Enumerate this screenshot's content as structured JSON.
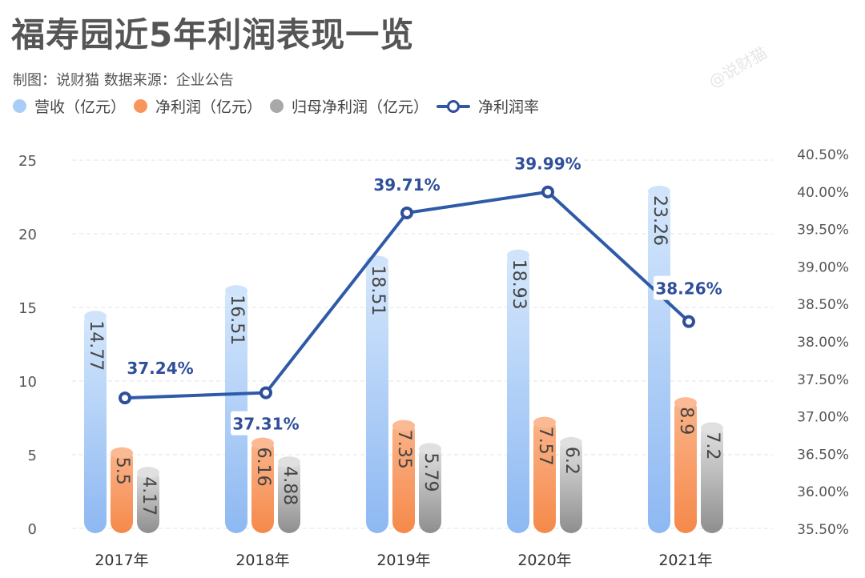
{
  "title": "福寿园近5年利润表现一览",
  "subtitle": "制图：说财猫  数据来源：企业公告",
  "watermark": "@说财猫",
  "colors": {
    "revenue": "#9cc4f5",
    "net_profit": "#f8955a",
    "parent_profit": "#a8a8a8",
    "margin": "#2f5aa8"
  },
  "chart_data": {
    "type": "bar+line",
    "categories": [
      "2017年",
      "2018年",
      "2019年",
      "2020年",
      "2021年"
    ],
    "series": [
      {
        "name": "营收（亿元）",
        "type": "bar",
        "axis": "left",
        "values": [
          14.77,
          16.51,
          18.51,
          18.93,
          23.26
        ],
        "labels": [
          "14.77",
          "16.51",
          "18.51",
          "18.93",
          "23.26"
        ]
      },
      {
        "name": "净利润（亿元）",
        "type": "bar",
        "axis": "left",
        "values": [
          5.5,
          6.16,
          7.35,
          7.57,
          8.9
        ],
        "labels": [
          "5.5",
          "6.16",
          "7.35",
          "7.57",
          "8.9"
        ]
      },
      {
        "name": "归母净利润（亿元）",
        "type": "bar",
        "axis": "left",
        "values": [
          4.17,
          4.88,
          5.79,
          6.2,
          7.2
        ],
        "labels": [
          "4.17",
          "4.88",
          "5.79",
          "6.2",
          "7.2"
        ]
      },
      {
        "name": "净利润率",
        "type": "line",
        "axis": "right",
        "values": [
          37.24,
          37.31,
          39.71,
          39.99,
          38.26
        ],
        "labels": [
          "37.24%",
          "37.31%",
          "39.71%",
          "39.99%",
          "38.26%"
        ]
      }
    ],
    "left_axis": {
      "ylim": [
        0,
        25
      ],
      "ticks": [
        "0",
        "5",
        "10",
        "15",
        "20",
        "25"
      ]
    },
    "right_axis": {
      "ylim": [
        35.5,
        40.5
      ],
      "ticks": [
        "35.50%",
        "36.00%",
        "36.50%",
        "37.00%",
        "37.50%",
        "38.00%",
        "38.50%",
        "39.00%",
        "39.50%",
        "40.00%",
        "40.50%"
      ]
    },
    "grid": true,
    "legend_position": "top-left"
  }
}
